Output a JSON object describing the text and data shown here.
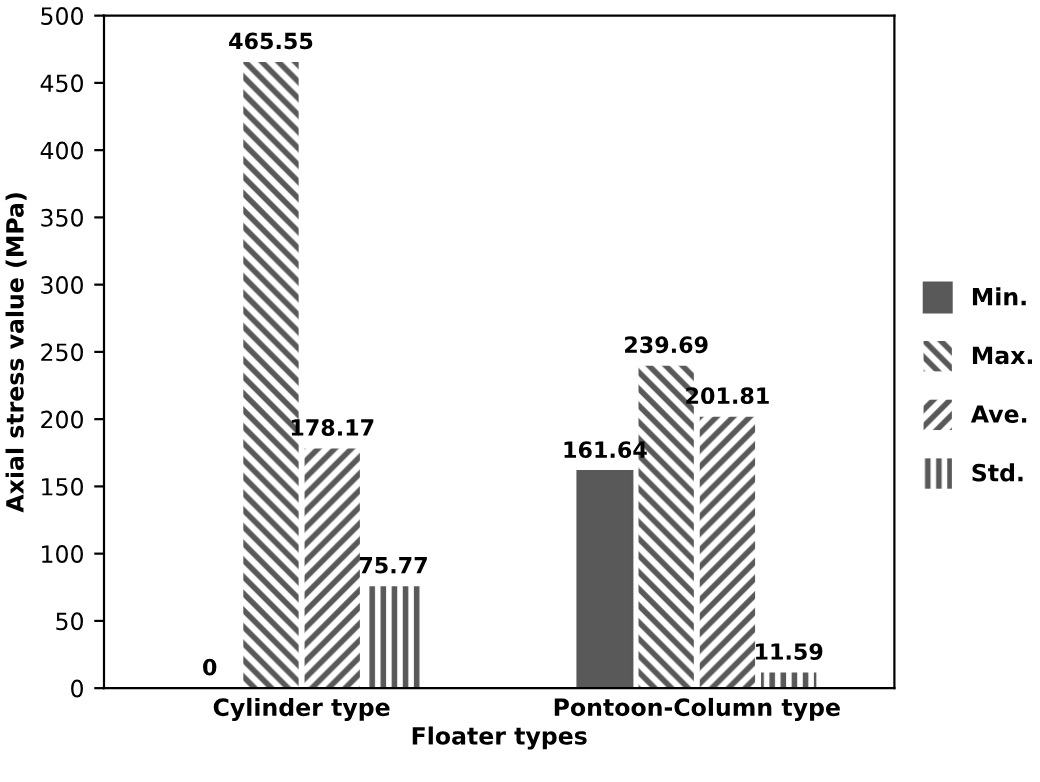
{
  "chart_data": {
    "type": "bar",
    "xlabel": "Floater types",
    "ylabel": "Axial stress value (MPa)",
    "categories": [
      "Cylinder type",
      "Pontoon-Column type"
    ],
    "series": [
      {
        "name": "Min.",
        "color": "#595959",
        "values": [
          0,
          161.64
        ]
      },
      {
        "name": "Max.",
        "color": "#595959",
        "values": [
          465.55,
          239.69
        ]
      },
      {
        "name": "Ave.",
        "color": "#595959",
        "values": [
          178.17,
          201.81
        ]
      },
      {
        "name": "Std.",
        "color": "#595959",
        "values": [
          75.77,
          11.59
        ]
      }
    ],
    "ylim": [
      0,
      500
    ],
    "yticks": [
      0,
      50,
      100,
      150,
      200,
      250,
      300,
      350,
      400,
      450,
      500
    ],
    "data_labels": true,
    "legend": "right",
    "grid": false
  }
}
